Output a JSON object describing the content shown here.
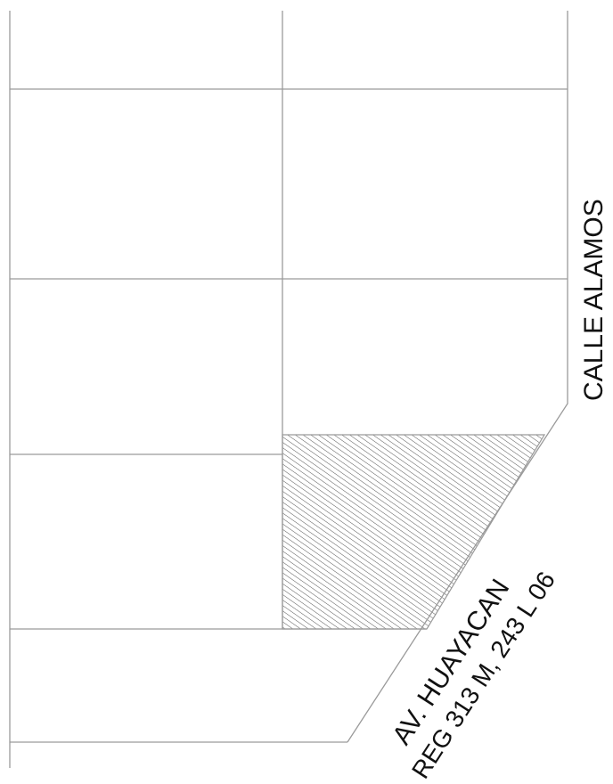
{
  "labels": {
    "street_right": "CALLE ALAMOS",
    "street_diagonal": "AV. HUAYACAN",
    "reference": "REG 313 M, 243 L 06"
  },
  "colors": {
    "lines": "#9a9a9a",
    "hatch": "#555555",
    "text": "#111111",
    "background": "#ffffff"
  }
}
